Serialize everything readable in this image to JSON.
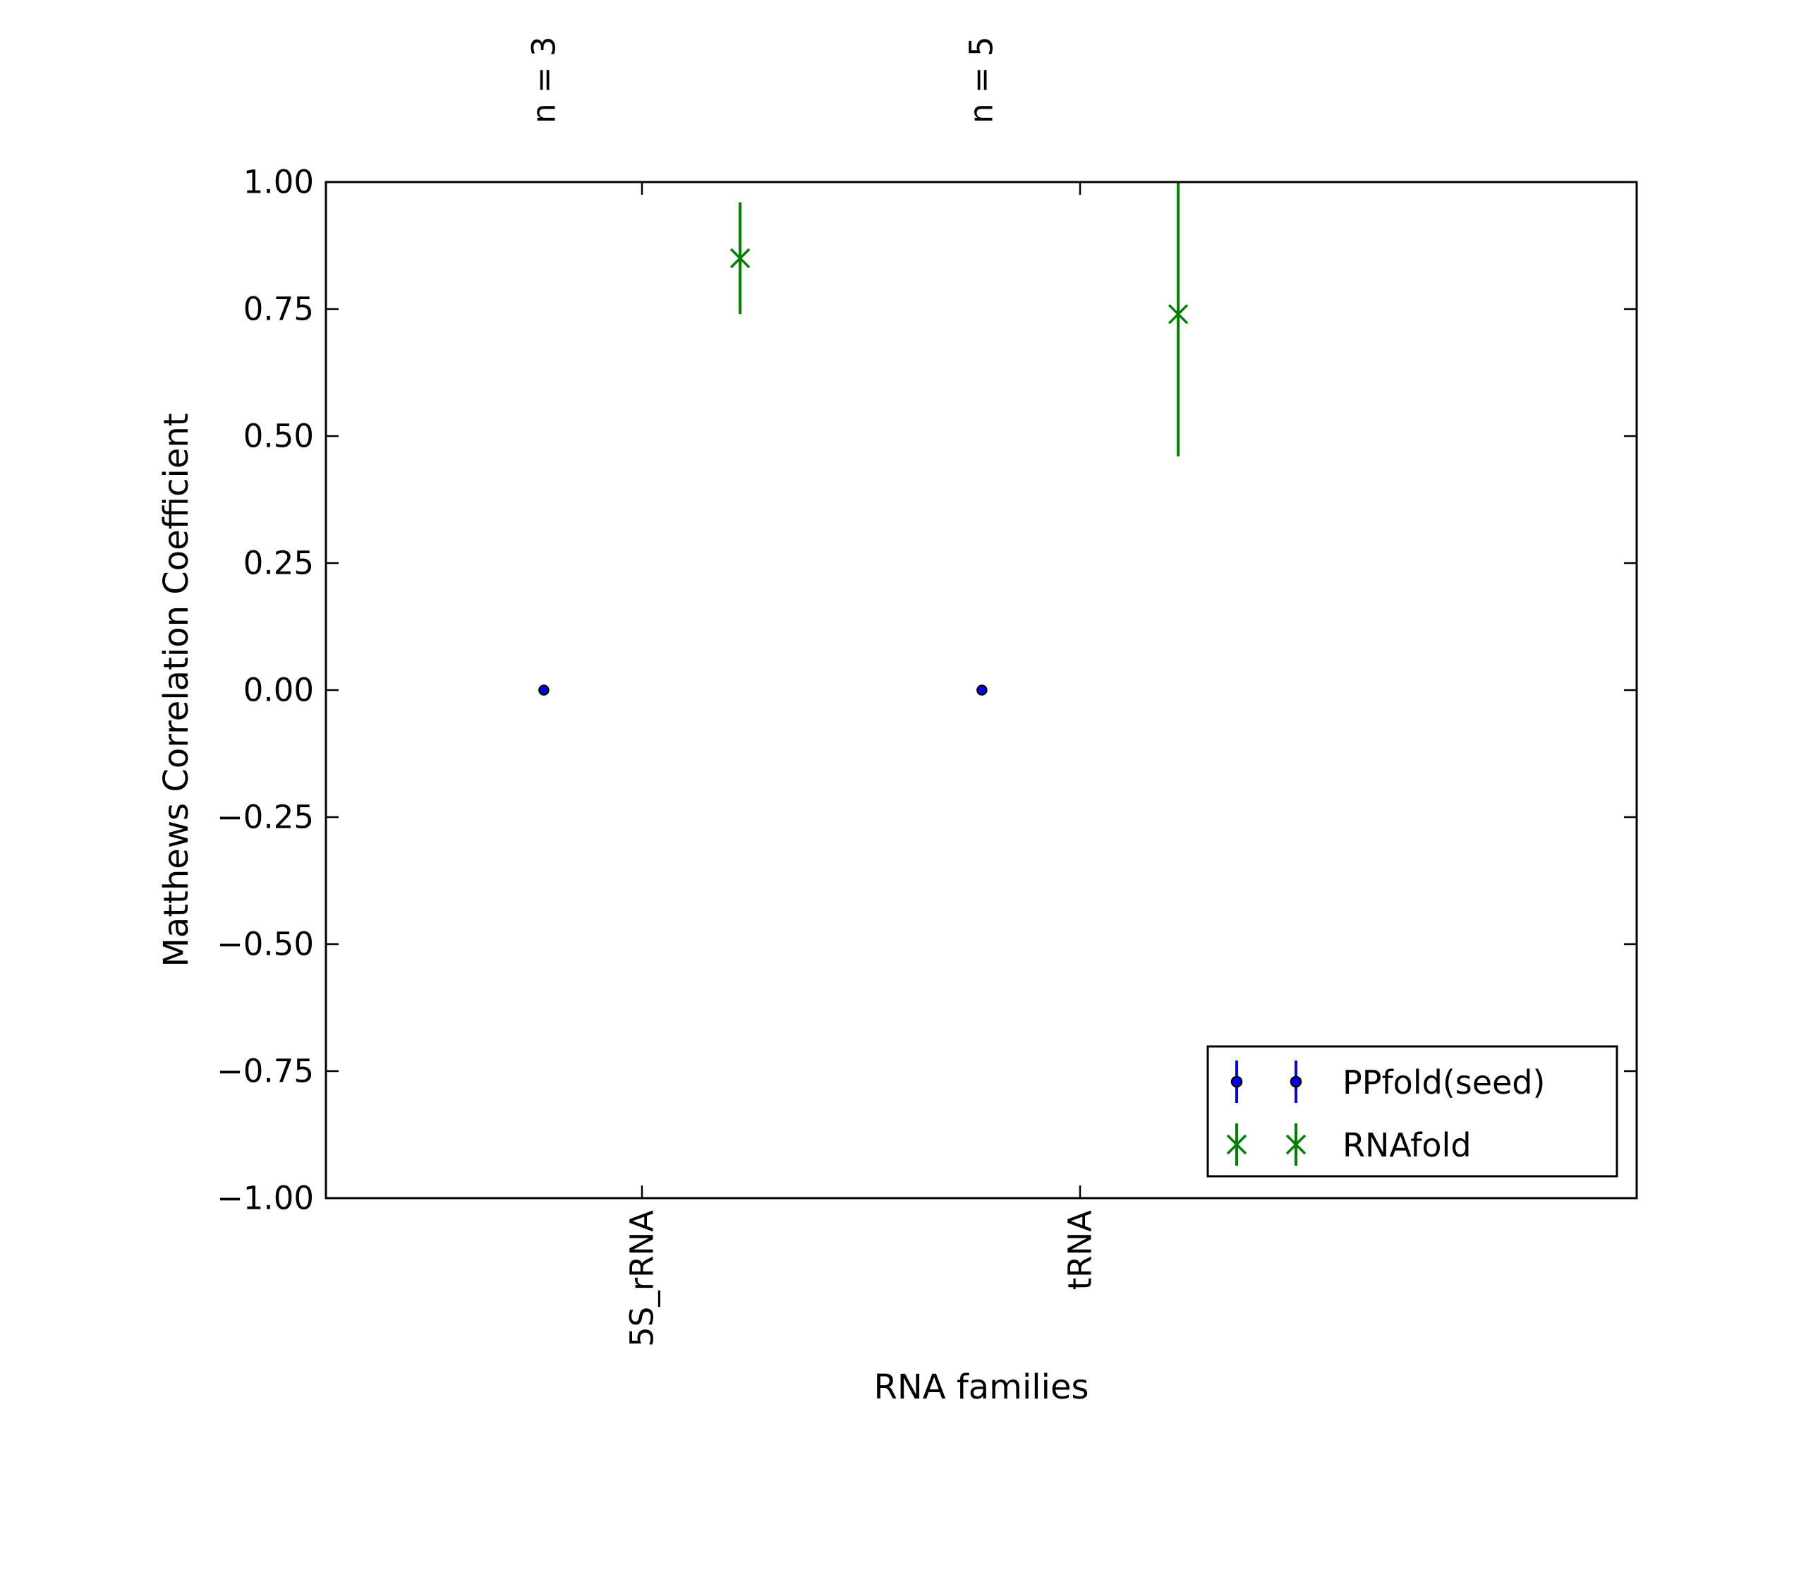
{
  "figure": {
    "background": "#ffffff",
    "frame_color": "#000000"
  },
  "chart_data": {
    "type": "scatter",
    "subtype": "errorbar",
    "title": "",
    "xlabel": "RNA families",
    "ylabel": "Matthews Correlation Coefficient",
    "categories": [
      "5S_rRNA",
      "tRNA"
    ],
    "annotations": [
      {
        "label": "n = 3",
        "category": "5S_rRNA"
      },
      {
        "label": "n = 5",
        "category": "tRNA"
      }
    ],
    "ylim": [
      -1.0,
      1.0
    ],
    "grid": false,
    "yticks": {
      "values": [
        1.0,
        0.75,
        0.5,
        0.25,
        0.0,
        -0.25,
        -0.5,
        -0.75,
        -1.0
      ],
      "labels": [
        "1.00",
        "0.75",
        "0.50",
        "0.25",
        "0.00",
        "−0.25",
        "−0.50",
        "−0.75",
        "−1.00"
      ]
    },
    "legend": {
      "position": "lower right",
      "entries": [
        "PPfold(seed)",
        "RNAfold"
      ]
    },
    "series": [
      {
        "name": "PPfold(seed)",
        "color": "#0000ff",
        "marker": "circle",
        "marker_edge": "#000000",
        "x_offset": -0.224,
        "points": [
          {
            "category": "5S_rRNA",
            "mcc": 0.0,
            "err_minus": 0.0,
            "err_plus": 0.0
          },
          {
            "category": "tRNA",
            "mcc": 0.0,
            "err_minus": 0.0,
            "err_plus": 0.0
          }
        ]
      },
      {
        "name": "RNAfold",
        "color": "#008000",
        "marker": "x",
        "x_offset": 0.224,
        "points": [
          {
            "category": "5S_rRNA",
            "mcc": 0.85,
            "err_minus": 0.11,
            "err_plus": 0.11
          },
          {
            "category": "tRNA",
            "mcc": 0.74,
            "err_minus": 0.28,
            "err_plus": 0.29
          }
        ]
      }
    ]
  }
}
